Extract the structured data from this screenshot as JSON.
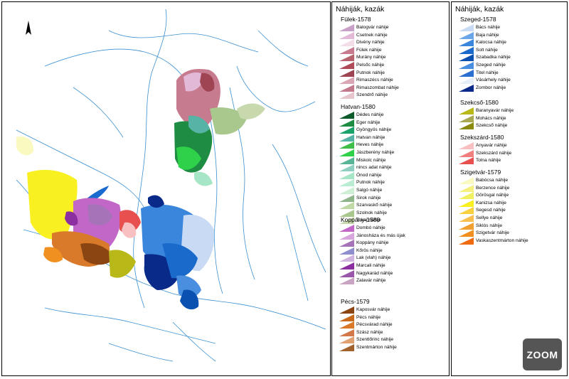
{
  "legend_title": "Náhiják, kazák",
  "zoom_label": "ZOOM",
  "groups": [
    {
      "title": "Fülek-1578",
      "items": [
        {
          "label": "Balogvár náhije",
          "color": "#c9a0c8"
        },
        {
          "label": "Csetnek náhije",
          "color": "#e3b9d8"
        },
        {
          "label": "Divény náhije",
          "color": "#f3dde9"
        },
        {
          "label": "Fülek náhije",
          "color": "#c77b8e"
        },
        {
          "label": "Murány náhije",
          "color": "#b8646f"
        },
        {
          "label": "Pelsőc náhije",
          "color": "#b04c5a"
        },
        {
          "label": "Putnok náhije",
          "color": "#9e4452"
        },
        {
          "label": "Rimaszécs náhije",
          "color": "#d9a6b4"
        },
        {
          "label": "Rimaszombat náhije",
          "color": "#c1798b"
        },
        {
          "label": "Szendrő náhije",
          "color": "#e6c5cc"
        }
      ]
    },
    {
      "title": "Hatvan-1580",
      "items": [
        {
          "label": "Dédes náhije",
          "color": "#0d5a2a"
        },
        {
          "label": "Eger náhije",
          "color": "#1e8c42"
        },
        {
          "label": "Gyöngyös náhije",
          "color": "#1aa26a"
        },
        {
          "label": "Hatvan náhije",
          "color": "#57b3a6"
        },
        {
          "label": "Heves náhije",
          "color": "#3fbf4a"
        },
        {
          "label": "Jászberény náhije",
          "color": "#2fd14a"
        },
        {
          "label": "Miskolc náhije",
          "color": "#58b496"
        },
        {
          "label": "nincs adat náhije",
          "color": "#8fcfc2"
        },
        {
          "label": "Ónod náhije",
          "color": "#a6e6c6"
        },
        {
          "label": "Putnok náhije",
          "color": "#b9ecd2"
        },
        {
          "label": "Salgó náhije",
          "color": "#cfeed6"
        },
        {
          "label": "Sirok náhije",
          "color": "#8fb58a"
        },
        {
          "label": "Szarvaskő náhije",
          "color": "#bfd9a6"
        },
        {
          "label": "Szolnok náhije",
          "color": "#a9c88e"
        },
        {
          "label": "Tokaj náhije",
          "color": "#c9d9ae"
        }
      ]
    },
    {
      "title": "Koppány-1580",
      "items": [
        {
          "label": "Dombó náhije",
          "color": "#c267c8"
        },
        {
          "label": "Jánosháza és más újak",
          "color": "#d6a6dc"
        },
        {
          "label": "Koppány náhije",
          "color": "#a673b8"
        },
        {
          "label": "Kőrös náhije",
          "color": "#8f8fd0"
        },
        {
          "label": "Lak (vlah) náhije",
          "color": "#d0b4e0"
        },
        {
          "label": "Marcali náhije",
          "color": "#8c2fa0"
        },
        {
          "label": "Nagykarád náhije",
          "color": "#9a56a8"
        },
        {
          "label": "Zalavár náhije",
          "color": "#c9a3c2"
        }
      ]
    },
    {
      "title": "Pécs-1579",
      "items": [
        {
          "label": "Kaposvár náhije",
          "color": "#8b4513"
        },
        {
          "label": "Pécs náhije",
          "color": "#c86a1a"
        },
        {
          "label": "Pécsvárad náhije",
          "color": "#d87a2a"
        },
        {
          "label": "Szász náhije",
          "color": "#d2784a"
        },
        {
          "label": "Szentlőrinc náhije",
          "color": "#e0a070"
        },
        {
          "label": "Szentmárton náhije",
          "color": "#a0622a"
        }
      ]
    },
    {
      "title": "Szeged-1578",
      "items": [
        {
          "label": "Bács náhije",
          "color": "#c8daf4"
        },
        {
          "label": "Baja náhije",
          "color": "#6aa6e8"
        },
        {
          "label": "Kalocsa náhije",
          "color": "#3a86dc"
        },
        {
          "label": "Solt náhije",
          "color": "#1a6acc"
        },
        {
          "label": "Szabadka náhije",
          "color": "#0a50b0"
        },
        {
          "label": "Szeged náhije",
          "color": "#4a8ee0"
        },
        {
          "label": "Titel náhije",
          "color": "#2a70d0"
        },
        {
          "label": "Vásárhely náhije",
          "color": "#e6eef8"
        },
        {
          "label": "Zombor náhije",
          "color": "#0a2a8a"
        }
      ]
    },
    {
      "title": "Szekcső-1580",
      "items": [
        {
          "label": "Baranyavár náhije",
          "color": "#b8b818"
        },
        {
          "label": "Mohács náhije",
          "color": "#a8a850"
        },
        {
          "label": "Szekcső náhije",
          "color": "#8a8a10"
        }
      ]
    },
    {
      "title": "Szekszárd-1580",
      "items": [
        {
          "label": "Anyavár náhije",
          "color": "#f8c0c0"
        },
        {
          "label": "Szekszárd náhije",
          "color": "#f08080"
        },
        {
          "label": "Tolna náhije",
          "color": "#e85050"
        }
      ]
    },
    {
      "title": "Szigetvár-1579",
      "items": [
        {
          "label": "Babócsa náhije",
          "color": "#fafac0"
        },
        {
          "label": "Berzence náhije",
          "color": "#f6f080"
        },
        {
          "label": "Görösgal náhije",
          "color": "#f0f060"
        },
        {
          "label": "Kanizsa náhije",
          "color": "#f8f020"
        },
        {
          "label": "Segesd náhije",
          "color": "#f8d040"
        },
        {
          "label": "Sellye náhije",
          "color": "#f8c050"
        },
        {
          "label": "Siklós náhije",
          "color": "#f0a030"
        },
        {
          "label": "Szigetvár náhije",
          "color": "#f09020"
        },
        {
          "label": "Vaskaszentmárton náhije",
          "color": "#f06a10"
        }
      ]
    }
  ]
}
